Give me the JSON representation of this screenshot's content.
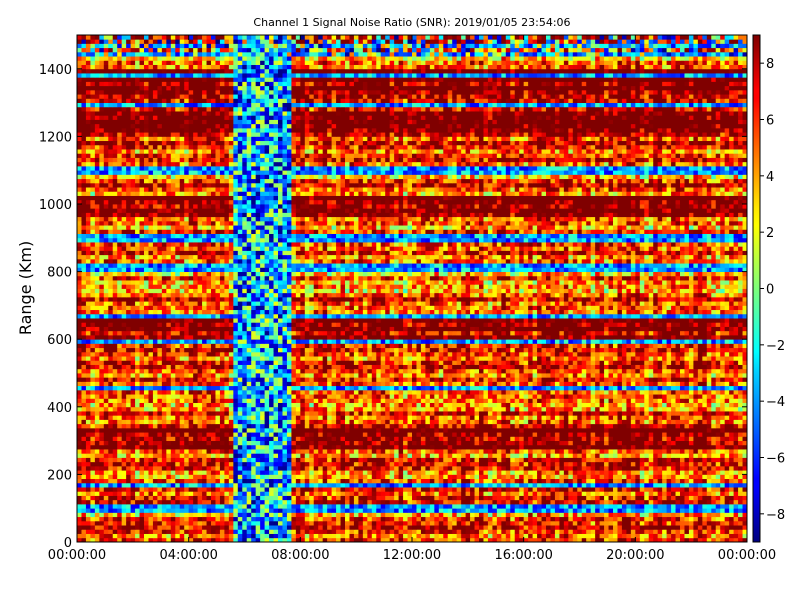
{
  "chart_data": {
    "type": "heatmap",
    "title": "Channel 1 Signal Noise Ratio (SNR): 2019/01/05 23:54:06",
    "ylabel": "Range (Km)",
    "xlabel": "",
    "x_range": [
      "00:00:00",
      "00:00:00 (next day)"
    ],
    "x_ticks": [
      "00:00:00",
      "04:00:00",
      "08:00:00",
      "12:00:00",
      "16:00:00",
      "20:00:00",
      "00:00:00"
    ],
    "ylim": [
      0,
      1500
    ],
    "y_ticks": [
      "0",
      "200",
      "400",
      "600",
      "800",
      "1000",
      "1200",
      "1400"
    ],
    "colorbar": {
      "colormap": "jet",
      "range": [
        -9,
        9
      ],
      "ticks": [
        "−8",
        "−6",
        "−4",
        "−2",
        "0",
        "2",
        "4",
        "6",
        "8"
      ]
    },
    "grid": false,
    "features": {
      "low_snr_band_hours": [
        5.6,
        7.6
      ],
      "high_snr_range_bands_km": [
        [
          960,
          1030
        ],
        [
          1200,
          1400
        ],
        [
          600,
          680
        ],
        [
          280,
          340
        ]
      ],
      "low_snr_range_lines_km": [
        1470,
        1445,
        1380,
        1290,
        1100,
        900,
        810,
        670,
        590,
        460,
        170,
        100
      ]
    }
  }
}
